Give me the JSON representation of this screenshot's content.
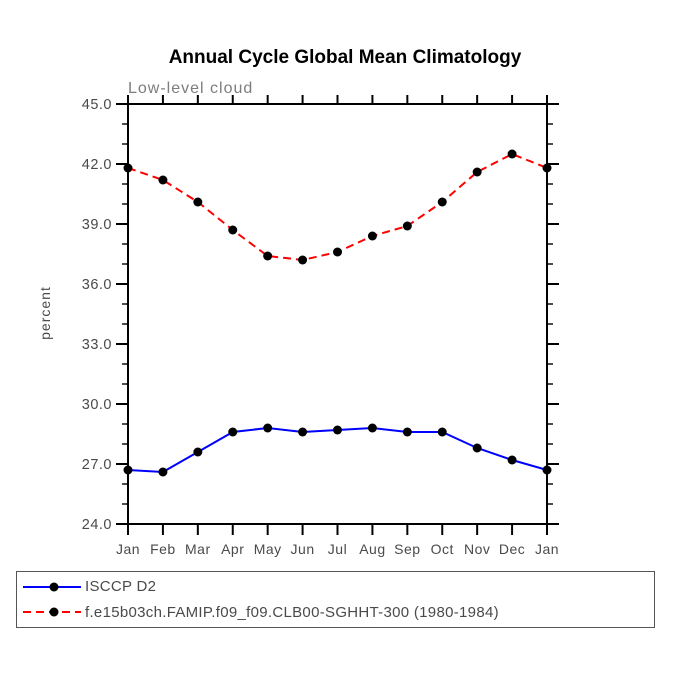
{
  "chart_data": {
    "type": "line",
    "title": "Annual Cycle Global Mean Climatology",
    "subtitle": "Low-level cloud",
    "xlabel": "",
    "ylabel": "percent",
    "categories": [
      "Jan",
      "Feb",
      "Mar",
      "Apr",
      "May",
      "Jun",
      "Jul",
      "Aug",
      "Sep",
      "Oct",
      "Nov",
      "Dec",
      "Jan"
    ],
    "ylim": [
      24.0,
      45.0
    ],
    "ytick_major_interval": 3.0,
    "ytick_minor_interval": 1.0,
    "ytick_labels": [
      "24.0",
      "27.0",
      "30.0",
      "33.0",
      "36.0",
      "39.0",
      "42.0",
      "45.0"
    ],
    "grid": false,
    "legend_position": "bottom-left",
    "marker": "filled-circle",
    "marker_color": "#000000",
    "series": [
      {
        "name": "ISCCP D2",
        "color": "#0000ff",
        "line_style": "solid",
        "values": [
          26.7,
          26.6,
          27.6,
          28.6,
          28.8,
          28.6,
          28.7,
          28.8,
          28.6,
          28.6,
          27.8,
          27.2,
          26.7
        ]
      },
      {
        "name": "f.e15b03ch.FAMIP.f09_f09.CLB00-SGHHT-300 (1980-1984)",
        "color": "#ff0000",
        "line_style": "dashed",
        "values": [
          41.8,
          41.2,
          40.1,
          38.7,
          37.4,
          37.2,
          37.6,
          38.4,
          38.9,
          40.1,
          41.6,
          42.5,
          41.8
        ]
      }
    ]
  }
}
